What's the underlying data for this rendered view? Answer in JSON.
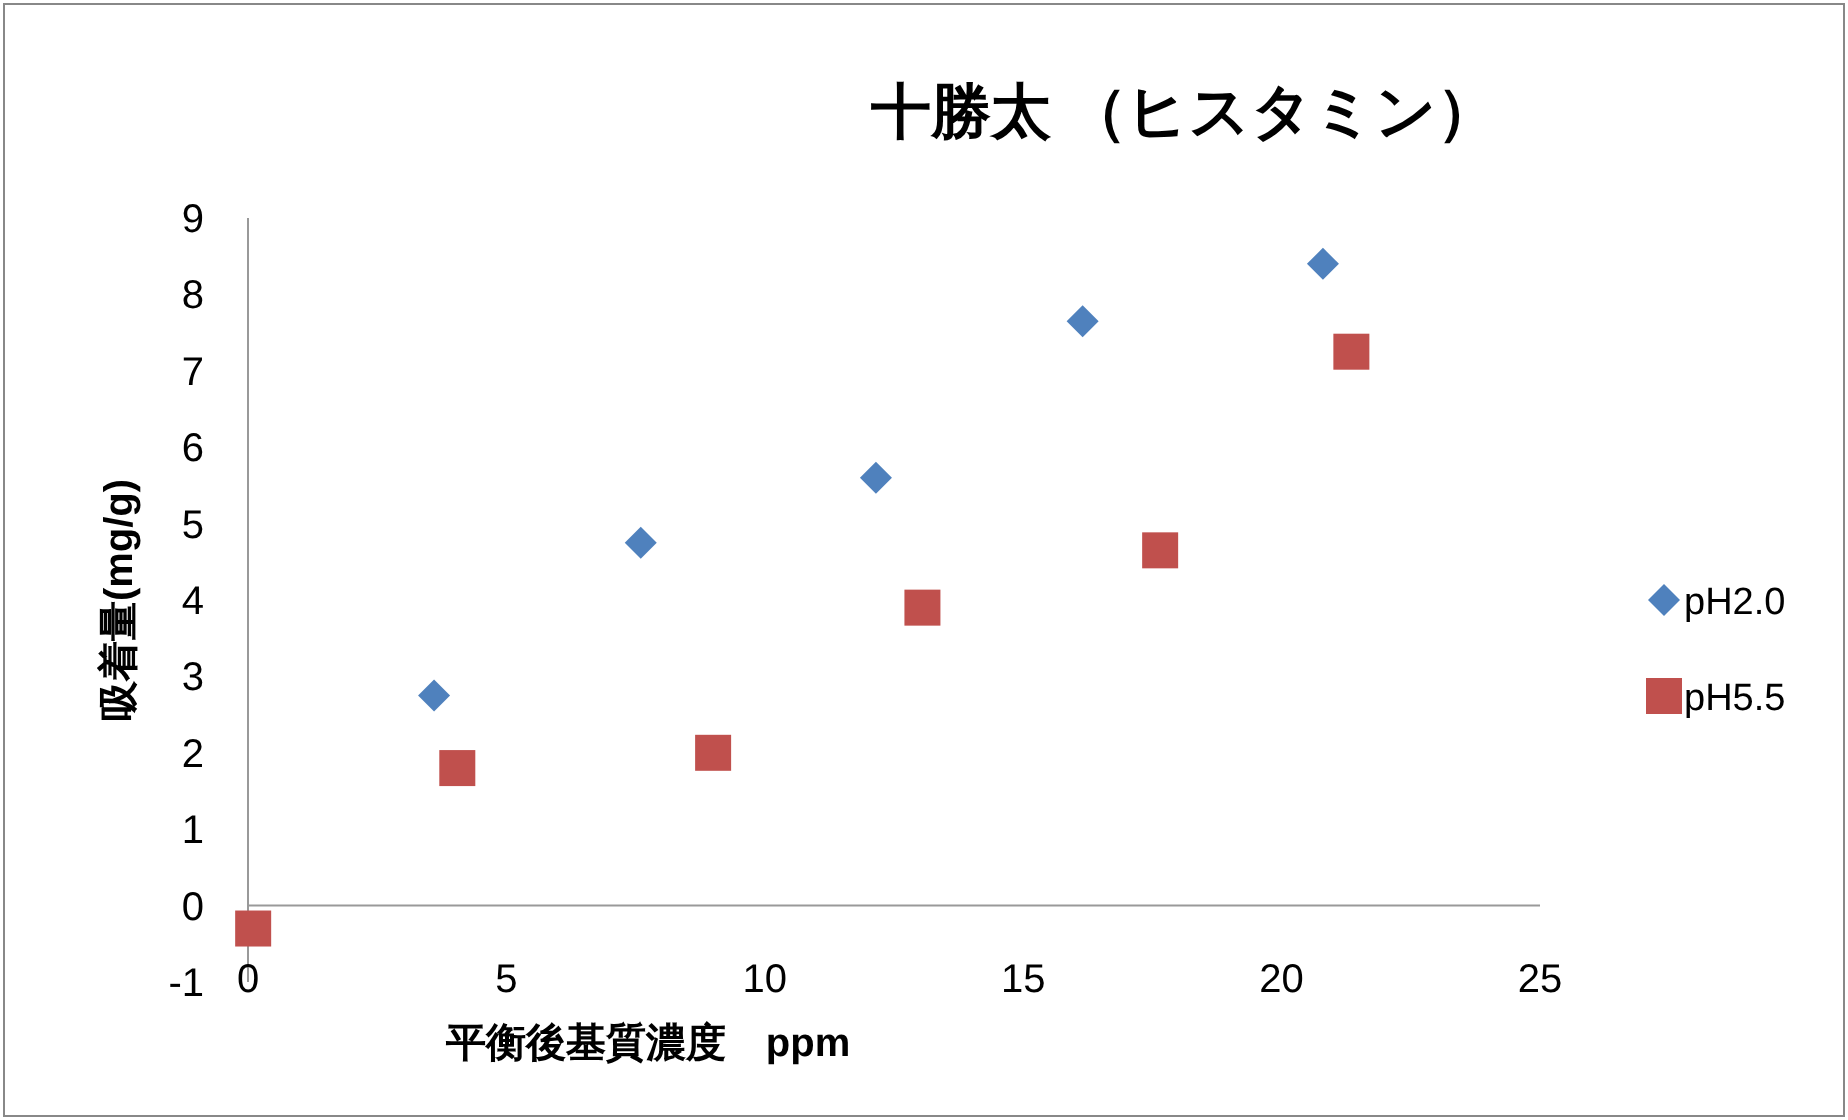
{
  "chart_data": {
    "type": "scatter",
    "title": "十勝太 （ヒスタミン）",
    "xlabel": "平衡後基質濃度　ppm",
    "ylabel": "吸着量(mg/g)",
    "xlim": [
      0,
      25
    ],
    "ylim": [
      -1,
      9
    ],
    "xticks": [
      0,
      5,
      10,
      15,
      20,
      25
    ],
    "yticks": [
      -1,
      0,
      1,
      2,
      3,
      4,
      5,
      6,
      7,
      8,
      9
    ],
    "legend": "right",
    "series": [
      {
        "name": "pH2.0",
        "color": "#4f81bd",
        "marker": "diamond",
        "x": [
          null,
          3.6,
          7.6,
          12.15,
          16.15,
          20.8
        ],
        "values": [
          null,
          2.75,
          4.75,
          5.6,
          7.65,
          8.4
        ]
      },
      {
        "name": "pH5.5",
        "color": "#c0504d",
        "marker": "square",
        "x": [
          0.1,
          4.05,
          9.0,
          13.05,
          17.65,
          21.35
        ],
        "values": [
          -0.3,
          1.8,
          2.0,
          3.9,
          4.65,
          7.25
        ]
      }
    ]
  }
}
